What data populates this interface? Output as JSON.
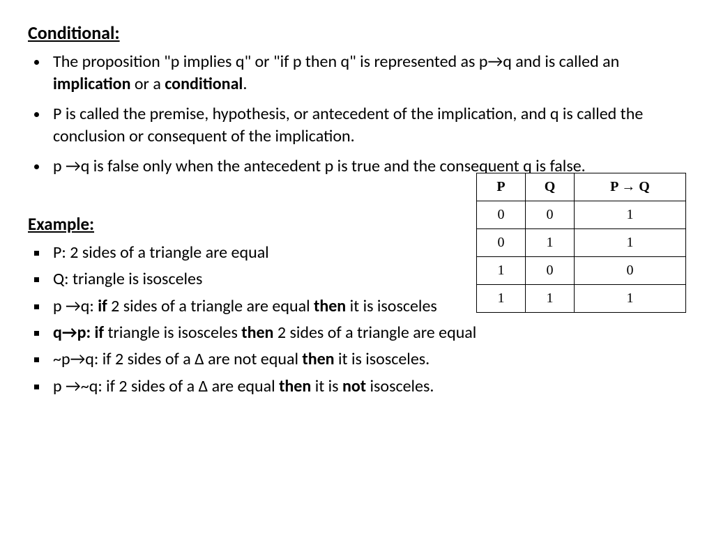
{
  "title": "Conditional:",
  "bullets1": [
    {
      "pre": "The proposition \"p implies q\" or \"if p then q\" is represented as p→q and is called an ",
      "b1": "implication",
      "mid": " or a ",
      "b2": "conditional",
      "post": "."
    },
    {
      "text": "P is called the premise, hypothesis, or antecedent of the implication, and q is called the conclusion or consequent of the implication."
    },
    {
      "text": "p →q is false only when the antecedent p is true and the consequent q is false."
    }
  ],
  "example_title": "Example:",
  "bullets2": [
    {
      "parts": [
        {
          "t": "P: 2 sides of a triangle are equal"
        }
      ]
    },
    {
      "parts": [
        {
          "t": "Q:  triangle is isosceles"
        }
      ]
    },
    {
      "parts": [
        {
          "t": "p →q: "
        },
        {
          "t": "if",
          "b": true
        },
        {
          "t": " 2 sides of a triangle are equal "
        },
        {
          "t": "then",
          "b": true
        },
        {
          "t": " it is isosceles"
        }
      ]
    },
    {
      "parts": [
        {
          "t": "q→p: if",
          "b": true
        },
        {
          "t": " triangle is isosceles "
        },
        {
          "t": "then",
          "b": true
        },
        {
          "t": " 2 sides of a triangle are equal"
        }
      ]
    },
    {
      "parts": [
        {
          "t": "~p→q: if 2 sides of a Δ are not equal "
        },
        {
          "t": "then",
          "b": true
        },
        {
          "t": " it is isosceles."
        }
      ]
    },
    {
      "parts": [
        {
          "t": "p →~q: if 2 sides of a Δ are equal "
        },
        {
          "t": "then",
          "b": true
        },
        {
          "t": " it is "
        },
        {
          "t": "not",
          "b": true
        },
        {
          "t": " isosceles."
        }
      ]
    }
  ],
  "truth_table": {
    "headers": [
      "P",
      "Q",
      "P → Q"
    ],
    "rows": [
      [
        "0",
        "0",
        "1"
      ],
      [
        "0",
        "1",
        "1"
      ],
      [
        "1",
        "0",
        "0"
      ],
      [
        "1",
        "1",
        "1"
      ]
    ],
    "col_widths": {
      "p": 70,
      "q": 70,
      "pq": 160
    },
    "border_color": "#000000",
    "font_family": "Times New Roman",
    "header_fontsize": 20,
    "cell_fontsize": 20
  }
}
